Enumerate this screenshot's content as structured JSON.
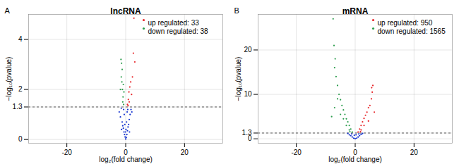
{
  "chart_data": [
    {
      "type": "scatter",
      "panel": "A",
      "title": "lncRNA",
      "x_label": "log₂(fold change)",
      "y_label": "−log₁₀(pvalue)",
      "xlim": [
        -33,
        33
      ],
      "xticks": [
        -20,
        0,
        20
      ],
      "ylim": [
        -0.15,
        5.0
      ],
      "yticks": [
        0,
        1.3,
        2,
        4
      ],
      "threshold": 1.3,
      "grid": true,
      "legend": "top-right",
      "marker": "circle",
      "series": [
        {
          "name": "up regulated: 33",
          "color": "#e8262a",
          "x": [
            0.6,
            0.9,
            1.1,
            1.4,
            1.7,
            2.0,
            2.3,
            2.6,
            3.1,
            2.8,
            1.2,
            0.8
          ],
          "y": [
            1.4,
            1.6,
            1.9,
            2.1,
            2.3,
            1.8,
            2.5,
            3.45,
            3.1,
            4.85,
            1.5,
            1.35
          ]
        },
        {
          "name": "down regulated: 38",
          "color": "#2e9e4f",
          "x": [
            -0.7,
            -0.9,
            -1.1,
            -1.3,
            -1.5,
            -1.2,
            -1.6,
            -1.4,
            -0.8,
            -1.0,
            -1.8,
            -0.6
          ],
          "y": [
            1.4,
            1.7,
            2.0,
            2.3,
            2.5,
            2.8,
            3.2,
            3.05,
            2.2,
            1.5,
            2.0,
            1.9
          ]
        },
        {
          "name": null,
          "color": "#1533d1",
          "x": [
            -2.2,
            -1.8,
            -1.5,
            -1.2,
            -1.0,
            -0.8,
            -0.6,
            -0.4,
            -0.2,
            0,
            0.2,
            0.4,
            0.6,
            0.8,
            1.0,
            1.2,
            1.5,
            1.8,
            2.1,
            -0.3,
            0.3,
            -0.5,
            0.5,
            -0.1,
            0.1,
            -0.7,
            0.7,
            -1.4,
            1.3
          ],
          "y": [
            1.1,
            0.9,
            1.25,
            0.7,
            0.55,
            0.45,
            0.3,
            0.2,
            0.1,
            0.02,
            0.08,
            0.2,
            0.35,
            0.5,
            0.6,
            0.8,
            1.0,
            1.2,
            1.1,
            0.6,
            0.7,
            1.0,
            1.1,
            0.3,
            0.4,
            1.2,
            1.2,
            0.4,
            0.3
          ]
        }
      ]
    },
    {
      "type": "scatter",
      "panel": "B",
      "title": "mRNA",
      "x_label": "log₂(fold change)",
      "y_label": "−log₁₀(pvalue)",
      "xlim": [
        -33,
        33
      ],
      "xticks": [
        -20,
        0,
        20
      ],
      "ylim": [
        -1,
        28
      ],
      "yticks": [
        0,
        1.3,
        10,
        20
      ],
      "threshold": 1.3,
      "grid": true,
      "legend": "top-right",
      "marker": "circle",
      "series": [
        {
          "name": "up regulated: 950",
          "color": "#e8262a",
          "x": [
            1,
            1.5,
            2,
            2.5,
            3,
            3.5,
            4,
            4.5,
            5,
            5.5,
            5.8,
            6,
            5.6,
            2,
            3,
            4.5,
            1.8,
            6.5
          ],
          "y": [
            1.5,
            2.2,
            3,
            3.8,
            4.6,
            5.3,
            6,
            7,
            7.5,
            9,
            10.5,
            12,
            11.5,
            2,
            3,
            4,
            1.6,
            6
          ]
        },
        {
          "name": "down regulated: 1565",
          "color": "#2e9e4f",
          "x": [
            -1,
            -1.5,
            -2,
            -2.5,
            -3,
            -3.5,
            -4,
            -4.5,
            -5,
            -5.5,
            -6,
            -6.5,
            -7,
            -6.8,
            -7.2,
            -7.5,
            -2,
            -3,
            -4,
            -5,
            -1.8,
            -6,
            -8,
            -7
          ],
          "y": [
            1.5,
            2.2,
            3,
            3.8,
            4.5,
            5.5,
            6.5,
            7.5,
            8.8,
            10,
            12,
            14,
            16,
            18,
            21,
            27,
            2,
            3,
            4.5,
            5.5,
            1.6,
            9,
            5,
            7
          ]
        },
        {
          "name": null,
          "color": "#1533d1",
          "x": [
            -2.5,
            -2,
            -1.5,
            -1,
            -0.5,
            0,
            0.5,
            1,
            1.5,
            2,
            2.5,
            -0.3,
            0.3,
            -1.2,
            1.2
          ],
          "y": [
            1.2,
            0.9,
            0.7,
            0.4,
            0.15,
            0.02,
            0.15,
            0.4,
            0.7,
            1.0,
            1.2,
            0.8,
            0.9,
            1.1,
            1.1
          ]
        }
      ]
    }
  ]
}
